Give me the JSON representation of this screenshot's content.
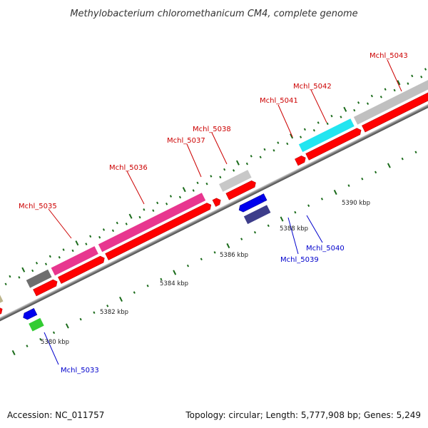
{
  "title": "Methylobacterium chloromethanicum CM4, complete genome",
  "footer": {
    "accession": "Accession: NC_011757",
    "summary": "Topology: circular; Length: 5,777,908 bp; Genes: 5,249"
  },
  "colors": {
    "forward_label": "#cc0000",
    "reverse_label": "#0000cc",
    "backbone": "#808080",
    "tick": "#1a6b1a"
  },
  "scale_labels": [
    {
      "text": "5380 kbp",
      "kbp": 5380
    },
    {
      "text": "5382 kbp",
      "kbp": 5382
    },
    {
      "text": "5384 kbp",
      "kbp": 5384
    },
    {
      "text": "5386 kbp",
      "kbp": 5386
    },
    {
      "text": "5388 kbp",
      "kbp": 5388
    },
    {
      "text": "5390 kbp",
      "kbp": 5390
    }
  ],
  "gene_labels": [
    {
      "text": "Mchl_5033",
      "strand": "reverse"
    },
    {
      "text": "Mchl_5035",
      "strand": "forward"
    },
    {
      "text": "Mchl_5036",
      "strand": "forward"
    },
    {
      "text": "Mchl_5037",
      "strand": "forward"
    },
    {
      "text": "Mchl_5038",
      "strand": "forward"
    },
    {
      "text": "Mchl_5039",
      "strand": "reverse"
    },
    {
      "text": "Mchl_5040",
      "strand": "reverse"
    },
    {
      "text": "Mchl_5041",
      "strand": "forward"
    },
    {
      "text": "Mchl_5042",
      "strand": "forward"
    },
    {
      "text": "Mchl_5043",
      "strand": "forward"
    }
  ]
}
